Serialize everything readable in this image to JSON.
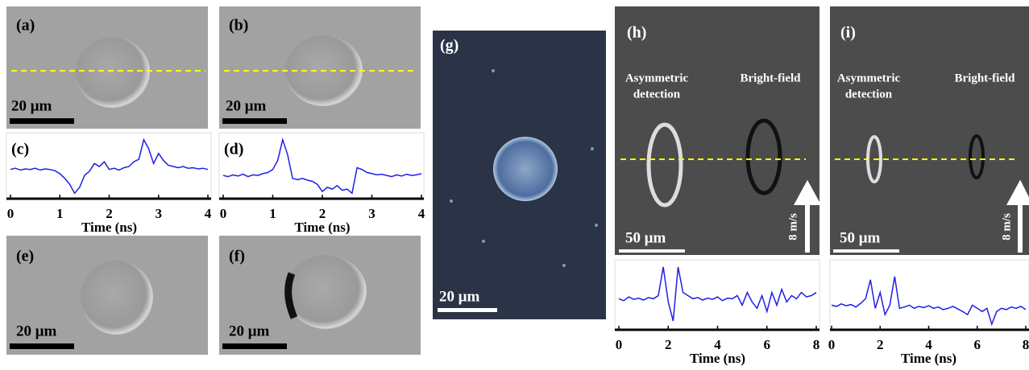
{
  "images": [
    {
      "label": "(a)",
      "scale_bar": "20 μm"
    },
    {
      "label": "(b)",
      "scale_bar": "20 μm"
    },
    {
      "label": "(e)",
      "scale_bar": "20 μm"
    },
    {
      "label": "(f)",
      "scale_bar": "20 μm"
    },
    {
      "label": "(g)",
      "scale_bar": "20 μm"
    },
    {
      "label": "(h)",
      "left_label": [
        "Asymmetric",
        "detection"
      ],
      "right_label": "Bright-field",
      "scale_bar": "50 μm",
      "speed": "8 m/s"
    },
    {
      "label": "(i)",
      "left_label": [
        "Asymmetric",
        "detection"
      ],
      "right_label": "Bright-field",
      "scale_bar": "50 μm",
      "speed": "8 m/s"
    }
  ],
  "chart_data": [
    {
      "type": "line",
      "label": "(c)",
      "xlabel": "Time (ns)",
      "color": "#1f1fe6",
      "xlim": [
        0,
        4
      ],
      "xticks": [
        0,
        1,
        2,
        3,
        4
      ],
      "ylim": [
        0,
        1
      ],
      "x": [
        0,
        0.1,
        0.2,
        0.3,
        0.4,
        0.5,
        0.6,
        0.7,
        0.8,
        0.9,
        1,
        1.1,
        1.2,
        1.3,
        1.4,
        1.5,
        1.6,
        1.7,
        1.8,
        1.9,
        2,
        2.1,
        2.2,
        2.3,
        2.4,
        2.5,
        2.6,
        2.7,
        2.8,
        2.9,
        3,
        3.1,
        3.2,
        3.3,
        3.4,
        3.5,
        3.6,
        3.7,
        3.8,
        3.9,
        4
      ],
      "values": [
        0.45,
        0.47,
        0.44,
        0.46,
        0.45,
        0.47,
        0.44,
        0.46,
        0.45,
        0.43,
        0.38,
        0.3,
        0.2,
        0.05,
        0.15,
        0.35,
        0.42,
        0.55,
        0.5,
        0.58,
        0.45,
        0.47,
        0.44,
        0.48,
        0.5,
        0.58,
        0.62,
        0.95,
        0.8,
        0.55,
        0.72,
        0.6,
        0.52,
        0.5,
        0.48,
        0.5,
        0.47,
        0.48,
        0.46,
        0.47,
        0.45
      ]
    },
    {
      "type": "line",
      "label": "(d)",
      "xlabel": "Time (ns)",
      "color": "#1f1fe6",
      "xlim": [
        0,
        4
      ],
      "xticks": [
        0,
        1,
        2,
        3,
        4
      ],
      "ylim": [
        0,
        1
      ],
      "x": [
        0,
        0.1,
        0.2,
        0.3,
        0.4,
        0.5,
        0.6,
        0.7,
        0.8,
        0.9,
        1,
        1.1,
        1.2,
        1.3,
        1.4,
        1.5,
        1.6,
        1.7,
        1.8,
        1.9,
        2,
        2.1,
        2.2,
        2.3,
        2.4,
        2.5,
        2.6,
        2.7,
        2.8,
        2.9,
        3,
        3.1,
        3.2,
        3.3,
        3.4,
        3.5,
        3.6,
        3.7,
        3.8,
        3.9,
        4
      ],
      "values": [
        0.35,
        0.33,
        0.36,
        0.34,
        0.37,
        0.33,
        0.36,
        0.35,
        0.38,
        0.4,
        0.45,
        0.6,
        0.95,
        0.7,
        0.3,
        0.28,
        0.3,
        0.27,
        0.25,
        0.2,
        0.08,
        0.15,
        0.12,
        0.18,
        0.1,
        0.12,
        0.05,
        0.48,
        0.45,
        0.4,
        0.38,
        0.36,
        0.37,
        0.35,
        0.33,
        0.36,
        0.34,
        0.37,
        0.35,
        0.36,
        0.38
      ]
    },
    {
      "type": "line",
      "xlabel": "Time (ns)",
      "color": "#1f1fe6",
      "xlim": [
        0,
        8
      ],
      "xticks": [
        0,
        2,
        4,
        6,
        8
      ],
      "ylim": [
        0,
        1
      ],
      "x": [
        0,
        0.2,
        0.4,
        0.6,
        0.8,
        1,
        1.2,
        1.4,
        1.6,
        1.8,
        2,
        2.2,
        2.4,
        2.6,
        2.8,
        3,
        3.2,
        3.4,
        3.6,
        3.8,
        4,
        4.2,
        4.4,
        4.6,
        4.8,
        5,
        5.2,
        5.4,
        5.6,
        5.8,
        6,
        6.2,
        6.4,
        6.6,
        6.8,
        7,
        7.2,
        7.4,
        7.6,
        7.8,
        8
      ],
      "values": [
        0.45,
        0.42,
        0.48,
        0.44,
        0.46,
        0.43,
        0.47,
        0.45,
        0.5,
        0.95,
        0.4,
        0.1,
        0.95,
        0.55,
        0.5,
        0.45,
        0.47,
        0.43,
        0.46,
        0.44,
        0.48,
        0.42,
        0.46,
        0.45,
        0.5,
        0.35,
        0.55,
        0.4,
        0.3,
        0.5,
        0.25,
        0.55,
        0.35,
        0.6,
        0.4,
        0.5,
        0.45,
        0.55,
        0.48,
        0.5,
        0.55
      ]
    },
    {
      "type": "line",
      "xlabel": "Time (ns)",
      "color": "#1f1fe6",
      "xlim": [
        0,
        8
      ],
      "xticks": [
        0,
        2,
        4,
        6,
        8
      ],
      "ylim": [
        0,
        1
      ],
      "x": [
        0,
        0.2,
        0.4,
        0.6,
        0.8,
        1,
        1.2,
        1.4,
        1.6,
        1.8,
        2,
        2.2,
        2.4,
        2.6,
        2.8,
        3,
        3.2,
        3.4,
        3.6,
        3.8,
        4,
        4.2,
        4.4,
        4.6,
        4.8,
        5,
        5.2,
        5.4,
        5.6,
        5.8,
        6,
        6.2,
        6.4,
        6.6,
        6.8,
        7,
        7.2,
        7.4,
        7.6,
        7.8,
        8
      ],
      "values": [
        0.35,
        0.33,
        0.37,
        0.34,
        0.36,
        0.32,
        0.38,
        0.45,
        0.75,
        0.3,
        0.55,
        0.2,
        0.35,
        0.8,
        0.3,
        0.32,
        0.35,
        0.3,
        0.33,
        0.31,
        0.34,
        0.3,
        0.32,
        0.28,
        0.3,
        0.33,
        0.29,
        0.25,
        0.2,
        0.35,
        0.3,
        0.25,
        0.3,
        0.05,
        0.25,
        0.3,
        0.28,
        0.32,
        0.3,
        0.33,
        0.28
      ]
    }
  ]
}
